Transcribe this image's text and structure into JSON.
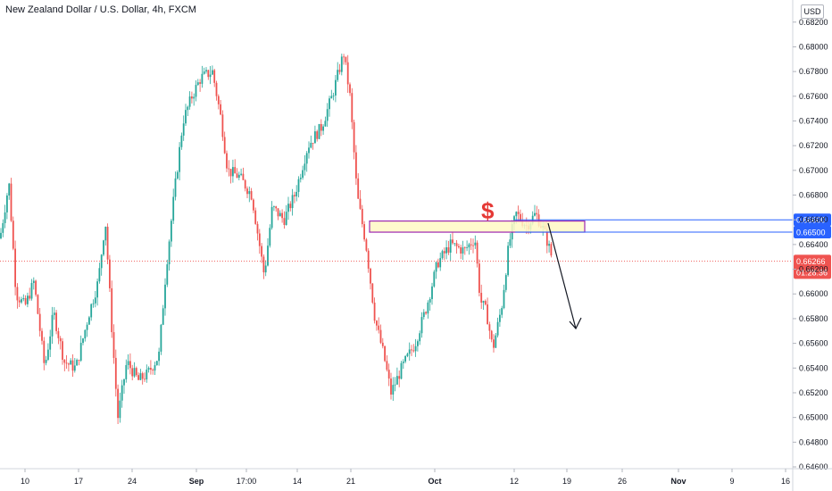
{
  "header": {
    "symbol_title": "New Zealand Dollar / U.S. Dollar, 4h, FXCM",
    "currency_badge": "USD"
  },
  "colors": {
    "up": "#26a69a",
    "down": "#ef5350",
    "level_line": "#2962ff",
    "zone_fill": "#fff9c4",
    "zone_border": "#9c27b0",
    "current_price": "#ef5350",
    "axis_text": "#131722",
    "arrow": "#131722"
  },
  "chart_data": {
    "type": "candlestick",
    "title": "New Zealand Dollar / U.S. Dollar, 4h, FXCM",
    "ylim": [
      0.646,
      0.6822
    ],
    "y_ticks": [
      "0.68200",
      "0.68000",
      "0.67800",
      "0.67600",
      "0.67400",
      "0.67200",
      "0.67000",
      "0.66800",
      "0.66600",
      "0.66400",
      "0.66200",
      "0.66000",
      "0.65800",
      "0.65600",
      "0.65400",
      "0.65200",
      "0.65000",
      "0.64800",
      "0.64600"
    ],
    "x_ticks": [
      "10",
      "17",
      "24",
      "Sep",
      "17:00",
      "14",
      "21",
      "Oct",
      "12",
      "19",
      "26",
      "Nov",
      "9",
      "16"
    ],
    "price_path": [
      {
        "t": 0,
        "p": 0.6645
      },
      {
        "t": 10,
        "p": 0.669
      },
      {
        "t": 18,
        "p": 0.66
      },
      {
        "t": 28,
        "p": 0.659
      },
      {
        "t": 38,
        "p": 0.661
      },
      {
        "t": 50,
        "p": 0.654
      },
      {
        "t": 60,
        "p": 0.6585
      },
      {
        "t": 72,
        "p": 0.6545
      },
      {
        "t": 85,
        "p": 0.654
      },
      {
        "t": 100,
        "p": 0.6585
      },
      {
        "t": 110,
        "p": 0.661
      },
      {
        "t": 118,
        "p": 0.666
      },
      {
        "t": 125,
        "p": 0.6575
      },
      {
        "t": 132,
        "p": 0.65
      },
      {
        "t": 142,
        "p": 0.6545
      },
      {
        "t": 155,
        "p": 0.653
      },
      {
        "t": 165,
        "p": 0.6535
      },
      {
        "t": 178,
        "p": 0.655
      },
      {
        "t": 186,
        "p": 0.662
      },
      {
        "t": 195,
        "p": 0.668
      },
      {
        "t": 205,
        "p": 0.674
      },
      {
        "t": 215,
        "p": 0.676
      },
      {
        "t": 225,
        "p": 0.6775
      },
      {
        "t": 238,
        "p": 0.678
      },
      {
        "t": 248,
        "p": 0.674
      },
      {
        "t": 255,
        "p": 0.67
      },
      {
        "t": 268,
        "p": 0.6695
      },
      {
        "t": 282,
        "p": 0.668
      },
      {
        "t": 296,
        "p": 0.6615
      },
      {
        "t": 305,
        "p": 0.667
      },
      {
        "t": 318,
        "p": 0.666
      },
      {
        "t": 330,
        "p": 0.668
      },
      {
        "t": 345,
        "p": 0.672
      },
      {
        "t": 360,
        "p": 0.6735
      },
      {
        "t": 372,
        "p": 0.676
      },
      {
        "t": 385,
        "p": 0.6795
      },
      {
        "t": 392,
        "p": 0.676
      },
      {
        "t": 400,
        "p": 0.668
      },
      {
        "t": 410,
        "p": 0.664
      },
      {
        "t": 420,
        "p": 0.658
      },
      {
        "t": 430,
        "p": 0.655
      },
      {
        "t": 438,
        "p": 0.652
      },
      {
        "t": 450,
        "p": 0.654
      },
      {
        "t": 465,
        "p": 0.656
      },
      {
        "t": 478,
        "p": 0.659
      },
      {
        "t": 490,
        "p": 0.6625
      },
      {
        "t": 505,
        "p": 0.664
      },
      {
        "t": 520,
        "p": 0.6635
      },
      {
        "t": 532,
        "p": 0.6645
      },
      {
        "t": 538,
        "p": 0.6595
      },
      {
        "t": 545,
        "p": 0.6585
      },
      {
        "t": 552,
        "p": 0.6555
      },
      {
        "t": 562,
        "p": 0.659
      },
      {
        "t": 570,
        "p": 0.664
      },
      {
        "t": 578,
        "p": 0.6665
      },
      {
        "t": 590,
        "p": 0.6655
      },
      {
        "t": 600,
        "p": 0.6665
      },
      {
        "t": 610,
        "p": 0.665
      },
      {
        "t": 618,
        "p": 0.663
      },
      {
        "t": 619,
        "p": 0.6627
      }
    ],
    "horizontal_levels": [
      {
        "label": "0.66600",
        "value": 0.666
      },
      {
        "label": "0.66500",
        "value": 0.665
      }
    ],
    "current_price": {
      "label": "0.66266",
      "value": 0.66266,
      "countdown": "01:28:36"
    },
    "zone": {
      "top": 0.6659,
      "bottom": 0.665
    },
    "annotation_symbol": "$"
  }
}
